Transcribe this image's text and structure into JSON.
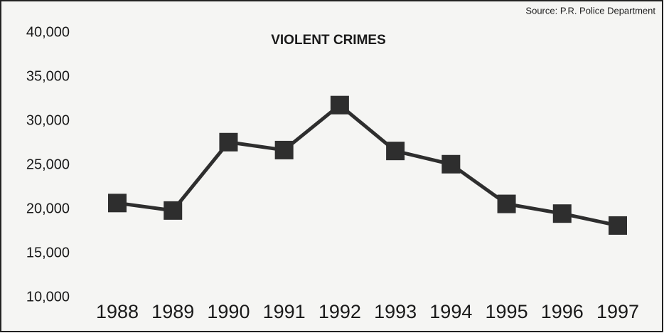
{
  "chart_data": {
    "type": "line",
    "title": "VIOLENT CRIMES",
    "source": "Source: P.R. Police Department",
    "categories": [
      "1988",
      "1989",
      "1990",
      "1991",
      "1992",
      "1993",
      "1994",
      "1995",
      "1996",
      "1997"
    ],
    "series": [
      {
        "name": "Violent crimes",
        "color": "#2e2e2e",
        "values": [
          20700,
          19850,
          27600,
          26700,
          31800,
          26600,
          25100,
          20600,
          19500,
          18150
        ]
      }
    ],
    "ylim": [
      10000,
      40000
    ],
    "yticks": [
      {
        "value": 10000,
        "label": "10,000"
      },
      {
        "value": 15000,
        "label": "15,000"
      },
      {
        "value": 20000,
        "label": "20,000"
      },
      {
        "value": 25000,
        "label": "25,000"
      },
      {
        "value": 30000,
        "label": "30,000"
      },
      {
        "value": 35000,
        "label": "35,000"
      },
      {
        "value": 40000,
        "label": "40,000"
      }
    ],
    "grid": false
  }
}
